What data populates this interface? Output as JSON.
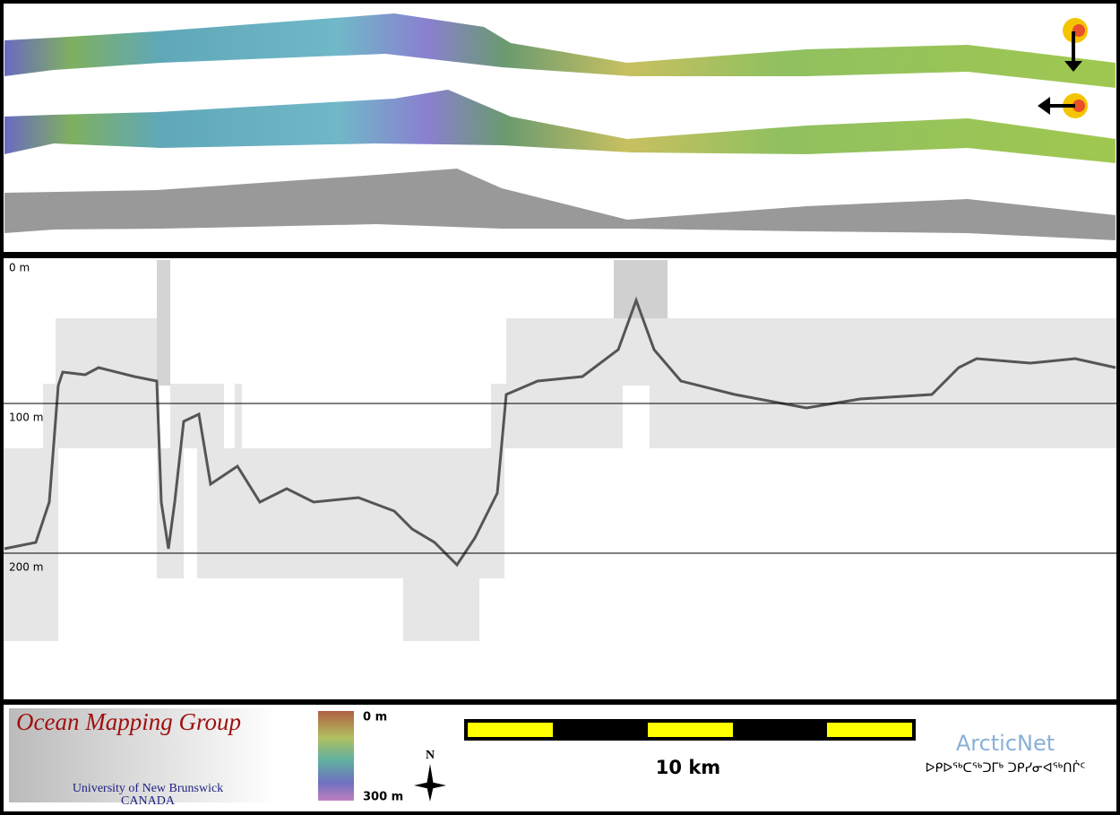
{
  "echogram": {
    "depth_labels": [
      "0 m",
      "100 m",
      "200 m"
    ]
  },
  "legend": {
    "logo_title": "Ocean Mapping Group",
    "logo_subtitle": "University of New Brunswick",
    "logo_country": "CANADA",
    "colorbar_top": "0 m",
    "colorbar_bottom": "300 m",
    "north": "N",
    "scale": "10 km",
    "partner": "ArcticNet",
    "partner_syllabics": "ᐅᑭᐅᖅᑕᖅᑐᒥᒃ ᑐᑭᓯᓂᐊᖅᑎᒌᑦ"
  }
}
